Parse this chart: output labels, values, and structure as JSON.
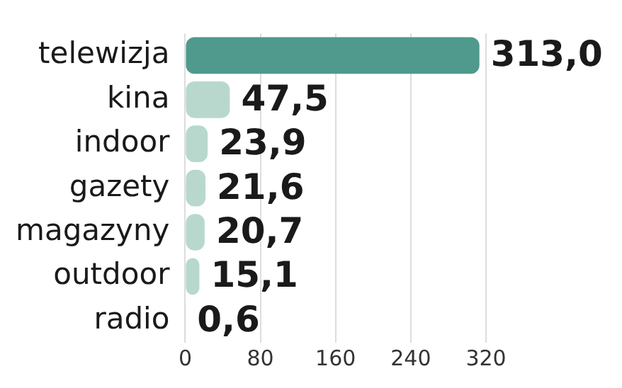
{
  "chart_data": {
    "type": "bar",
    "orientation": "horizontal",
    "categories": [
      "telewizja",
      "kina",
      "indoor",
      "gazety",
      "magazyny",
      "outdoor",
      "radio"
    ],
    "values": [
      313.0,
      47.5,
      23.9,
      21.6,
      20.7,
      15.1,
      0.6
    ],
    "value_labels": [
      "313,0",
      "47,5",
      "23,9",
      "21,6",
      "20,7",
      "15,1",
      "0,6"
    ],
    "colors": [
      "#4f9a8c",
      "#b8d8ce",
      "#b8d8ce",
      "#b8d8ce",
      "#b8d8ce",
      "#b8d8ce",
      "#b8d8ce"
    ],
    "xlim": [
      0,
      320
    ],
    "xticks": [
      0,
      80,
      160,
      240,
      320
    ],
    "grid": "x",
    "legend": false
  }
}
